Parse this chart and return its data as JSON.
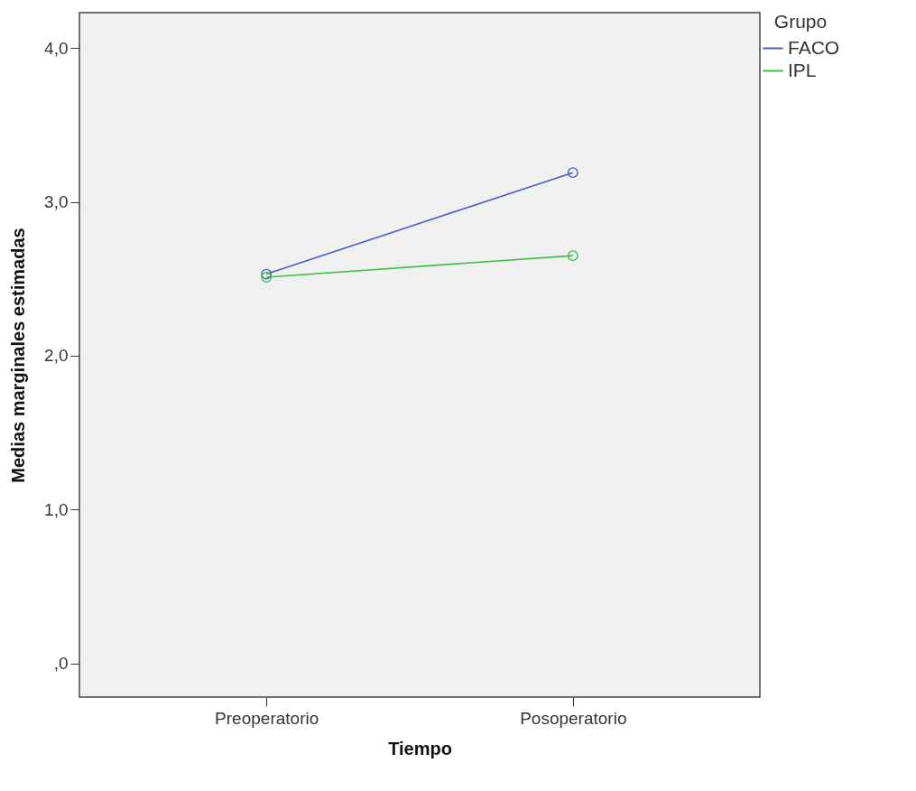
{
  "chart_data": {
    "type": "line",
    "xlabel": "Tiempo",
    "ylabel": "Medias marginales estimadas",
    "legend_title": "Grupo",
    "categories": [
      "Preoperatorio",
      "Posoperatorio"
    ],
    "series": [
      {
        "name": "FACO",
        "color": "#4a5fc1",
        "values": [
          2.53,
          3.19
        ]
      },
      {
        "name": "IPL",
        "color": "#3fbf4a",
        "values": [
          2.51,
          2.65
        ]
      }
    ],
    "ylim": [
      -0.22,
      4.23
    ],
    "yticks": [
      {
        "value": 0,
        "label": ",0"
      },
      {
        "value": 1,
        "label": "1,0"
      },
      {
        "value": 2,
        "label": "2,0"
      },
      {
        "value": 3,
        "label": "3,0"
      },
      {
        "value": 4,
        "label": "4,0"
      }
    ],
    "grid": false,
    "legend": "top right",
    "marker": "circle",
    "line_style": "solid"
  }
}
